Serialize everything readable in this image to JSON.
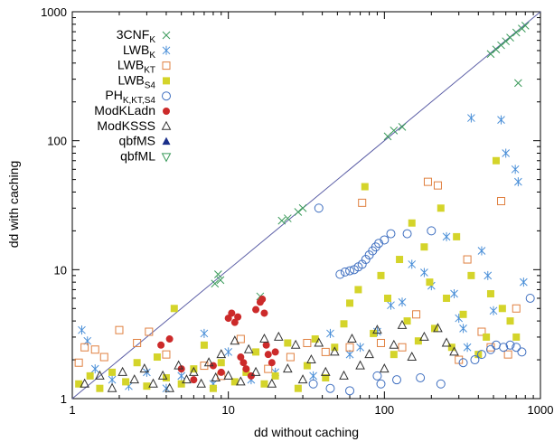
{
  "chart_data": {
    "type": "scatter",
    "title": "",
    "xlabel": "dd without caching",
    "ylabel": "dd with caching",
    "xscale": "log",
    "yscale": "log",
    "xlim": [
      1,
      1000
    ],
    "ylim": [
      1,
      1000
    ],
    "x_ticks": [
      "1",
      "10",
      "100",
      "1000"
    ],
    "y_ticks": [
      "1",
      "10",
      "100",
      "1000"
    ],
    "grid": false,
    "legend_position": "top-left",
    "reference_line": {
      "from": [
        1,
        1
      ],
      "to": [
        1000,
        1000
      ],
      "color": "#5b5ea6"
    },
    "series": [
      {
        "name": "3CNF",
        "name_sub": "K",
        "marker": "x",
        "color": "#3a9a5a",
        "points": [
          [
            8.2,
            7.8
          ],
          [
            8.6,
            9.2
          ],
          [
            8.9,
            8.3
          ],
          [
            16,
            6.2
          ],
          [
            22,
            24
          ],
          [
            24,
            25
          ],
          [
            28,
            28
          ],
          [
            30,
            30
          ],
          [
            105,
            108
          ],
          [
            115,
            120
          ],
          [
            130,
            128
          ],
          [
            480,
            470
          ],
          [
            520,
            510
          ],
          [
            560,
            550
          ],
          [
            600,
            590
          ],
          [
            640,
            630
          ],
          [
            700,
            690
          ],
          [
            760,
            740
          ],
          [
            800,
            780
          ],
          [
            720,
            280
          ]
        ]
      },
      {
        "name": "LWB",
        "name_sub": "K",
        "marker": "asterisk",
        "color": "#4a8fd8",
        "points": [
          [
            1.15,
            3.4
          ],
          [
            1.25,
            2.8
          ],
          [
            1.4,
            1.7
          ],
          [
            1.8,
            1.4
          ],
          [
            2.3,
            1.25
          ],
          [
            3,
            1.6
          ],
          [
            4,
            1.2
          ],
          [
            5,
            1.5
          ],
          [
            7,
            3.2
          ],
          [
            8,
            1.3
          ],
          [
            10,
            2.3
          ],
          [
            14,
            1.4
          ],
          [
            20,
            1.6
          ],
          [
            35,
            1.5
          ],
          [
            45,
            3.2
          ],
          [
            60,
            2.2
          ],
          [
            70,
            2.5
          ],
          [
            90,
            3.3
          ],
          [
            110,
            5.3
          ],
          [
            130,
            5.6
          ],
          [
            150,
            11
          ],
          [
            180,
            9.5
          ],
          [
            200,
            7.5
          ],
          [
            250,
            18
          ],
          [
            280,
            6.5
          ],
          [
            300,
            4.2
          ],
          [
            320,
            3.5
          ],
          [
            340,
            2.5
          ],
          [
            360,
            150
          ],
          [
            420,
            14
          ],
          [
            460,
            9
          ],
          [
            500,
            4.8
          ],
          [
            560,
            145
          ],
          [
            600,
            80
          ],
          [
            690,
            60
          ],
          [
            720,
            48
          ],
          [
            780,
            8
          ]
        ]
      },
      {
        "name": "LWB",
        "name_sub": "KT",
        "marker": "square-open",
        "color": "#e08040",
        "points": [
          [
            1.1,
            1.9
          ],
          [
            1.2,
            2.5
          ],
          [
            1.4,
            2.4
          ],
          [
            1.6,
            2.1
          ],
          [
            2,
            3.4
          ],
          [
            2.6,
            2.7
          ],
          [
            3.1,
            3.3
          ],
          [
            4,
            2.2
          ],
          [
            7,
            1.8
          ],
          [
            9,
            1.5
          ],
          [
            12,
            2.9
          ],
          [
            18,
            1.7
          ],
          [
            25,
            2.1
          ],
          [
            32,
            2.7
          ],
          [
            42,
            2.3
          ],
          [
            60,
            2.5
          ],
          [
            72,
            33
          ],
          [
            95,
            2.7
          ],
          [
            130,
            2.5
          ],
          [
            160,
            4.5
          ],
          [
            190,
            48
          ],
          [
            220,
            45
          ],
          [
            300,
            2
          ],
          [
            340,
            12
          ],
          [
            420,
            3.3
          ],
          [
            480,
            2.5
          ],
          [
            560,
            34
          ],
          [
            620,
            2.2
          ],
          [
            700,
            5
          ]
        ]
      },
      {
        "name": "LWB",
        "name_sub": "S4",
        "marker": "square",
        "color": "#d4d42a",
        "points": [
          [
            1.1,
            1.3
          ],
          [
            1.3,
            1.5
          ],
          [
            1.5,
            1.2
          ],
          [
            1.8,
            1.6
          ],
          [
            2.2,
            1.35
          ],
          [
            2.6,
            1.9
          ],
          [
            3,
            1.25
          ],
          [
            3.5,
            2.1
          ],
          [
            4,
            1.45
          ],
          [
            4.5,
            5
          ],
          [
            5,
            1.3
          ],
          [
            6,
            1.7
          ],
          [
            7,
            2.6
          ],
          [
            8,
            1.2
          ],
          [
            9,
            1.9
          ],
          [
            11,
            1.35
          ],
          [
            13,
            1.6
          ],
          [
            15,
            2.3
          ],
          [
            17,
            1.3
          ],
          [
            20,
            1.5
          ],
          [
            24,
            2.7
          ],
          [
            28,
            1.2
          ],
          [
            32,
            1.8
          ],
          [
            36,
            2.9
          ],
          [
            42,
            1.45
          ],
          [
            48,
            2.5
          ],
          [
            55,
            3.8
          ],
          [
            60,
            5.5
          ],
          [
            68,
            7
          ],
          [
            75,
            44
          ],
          [
            85,
            3.2
          ],
          [
            95,
            9
          ],
          [
            105,
            6
          ],
          [
            115,
            2.2
          ],
          [
            125,
            12
          ],
          [
            140,
            4
          ],
          [
            150,
            23
          ],
          [
            165,
            2.8
          ],
          [
            180,
            15
          ],
          [
            195,
            8
          ],
          [
            210,
            3.5
          ],
          [
            230,
            30
          ],
          [
            250,
            6
          ],
          [
            270,
            2.5
          ],
          [
            290,
            18
          ],
          [
            320,
            4.5
          ],
          [
            360,
            9
          ],
          [
            400,
            2.2
          ],
          [
            450,
            3
          ],
          [
            480,
            6.5
          ],
          [
            520,
            70
          ],
          [
            570,
            5
          ],
          [
            640,
            4
          ],
          [
            700,
            3
          ]
        ]
      },
      {
        "name": "PH",
        "name_sub": "K,KT,S4",
        "marker": "circle-open",
        "color": "#3f6fc0",
        "points": [
          [
            38,
            30
          ],
          [
            52,
            9.2
          ],
          [
            56,
            9.6
          ],
          [
            60,
            9.8
          ],
          [
            64,
            10
          ],
          [
            68,
            10.5
          ],
          [
            72,
            11
          ],
          [
            76,
            12
          ],
          [
            80,
            13
          ],
          [
            84,
            14
          ],
          [
            88,
            15
          ],
          [
            92,
            16
          ],
          [
            100,
            17
          ],
          [
            110,
            19
          ],
          [
            140,
            19
          ],
          [
            200,
            20
          ],
          [
            35,
            1.3
          ],
          [
            45,
            1.2
          ],
          [
            60,
            1.15
          ],
          [
            90,
            1.5
          ],
          [
            95,
            1.3
          ],
          [
            120,
            1.4
          ],
          [
            170,
            1.45
          ],
          [
            230,
            1.3
          ],
          [
            320,
            1.9
          ],
          [
            380,
            2
          ],
          [
            420,
            2.2
          ],
          [
            480,
            2.4
          ],
          [
            520,
            2.6
          ],
          [
            580,
            2.5
          ],
          [
            640,
            2.6
          ],
          [
            700,
            2.5
          ],
          [
            760,
            2.3
          ],
          [
            860,
            6
          ]
        ]
      },
      {
        "name": "ModKLadn",
        "marker": "disc",
        "color": "#cc2a2a",
        "points": [
          [
            3.7,
            2.6
          ],
          [
            4.2,
            2.9
          ],
          [
            5,
            1.7
          ],
          [
            6,
            1.4
          ],
          [
            8,
            1.8
          ],
          [
            9,
            1.6
          ],
          [
            10,
            4.2
          ],
          [
            10.5,
            4.6
          ],
          [
            11,
            3.9
          ],
          [
            11.5,
            4.3
          ],
          [
            12,
            2.1
          ],
          [
            12.5,
            1.9
          ],
          [
            13,
            1.7
          ],
          [
            14,
            1.5
          ],
          [
            15,
            4.9
          ],
          [
            16,
            5.6
          ],
          [
            16.5,
            5.9
          ],
          [
            17,
            4.6
          ],
          [
            17.5,
            2.6
          ],
          [
            18,
            2.2
          ],
          [
            19,
            1.9
          ],
          [
            20,
            2.3
          ]
        ]
      },
      {
        "name": "ModKSSS",
        "marker": "triangle-open",
        "color": "#333333",
        "points": [
          [
            1.2,
            1.3
          ],
          [
            1.5,
            1.5
          ],
          [
            1.8,
            1.2
          ],
          [
            2.1,
            1.6
          ],
          [
            2.5,
            1.4
          ],
          [
            2.9,
            1.7
          ],
          [
            3.3,
            1.3
          ],
          [
            3.8,
            1.5
          ],
          [
            4.2,
            1.2
          ],
          [
            4.8,
            1.8
          ],
          [
            5.4,
            1.4
          ],
          [
            6,
            1.6
          ],
          [
            6.7,
            1.3
          ],
          [
            7.5,
            1.9
          ],
          [
            8.3,
            1.45
          ],
          [
            9,
            2.2
          ],
          [
            10,
            1.5
          ],
          [
            11,
            2.8
          ],
          [
            12,
            1.35
          ],
          [
            13.5,
            2.4
          ],
          [
            15,
            1.6
          ],
          [
            17,
            2.9
          ],
          [
            19,
            1.3
          ],
          [
            21,
            3
          ],
          [
            24,
            1.7
          ],
          [
            27,
            2.6
          ],
          [
            30,
            1.4
          ],
          [
            34,
            2
          ],
          [
            38,
            2.7
          ],
          [
            42,
            1.6
          ],
          [
            48,
            2.3
          ],
          [
            55,
            1.5
          ],
          [
            62,
            2.9
          ],
          [
            70,
            1.8
          ],
          [
            80,
            2.2
          ],
          [
            90,
            3.4
          ],
          [
            100,
            1.7
          ],
          [
            115,
            2.6
          ],
          [
            130,
            3.7
          ],
          [
            150,
            2.1
          ],
          [
            180,
            3
          ],
          [
            220,
            3.5
          ],
          [
            250,
            2.7
          ],
          [
            280,
            2.3
          ]
        ]
      },
      {
        "name": "qbfMS",
        "marker": "triangle",
        "color": "#1a2f8a",
        "points": []
      },
      {
        "name": "qbfML",
        "marker": "triangle-down-open",
        "color": "#3a9a5a",
        "points": []
      }
    ]
  }
}
